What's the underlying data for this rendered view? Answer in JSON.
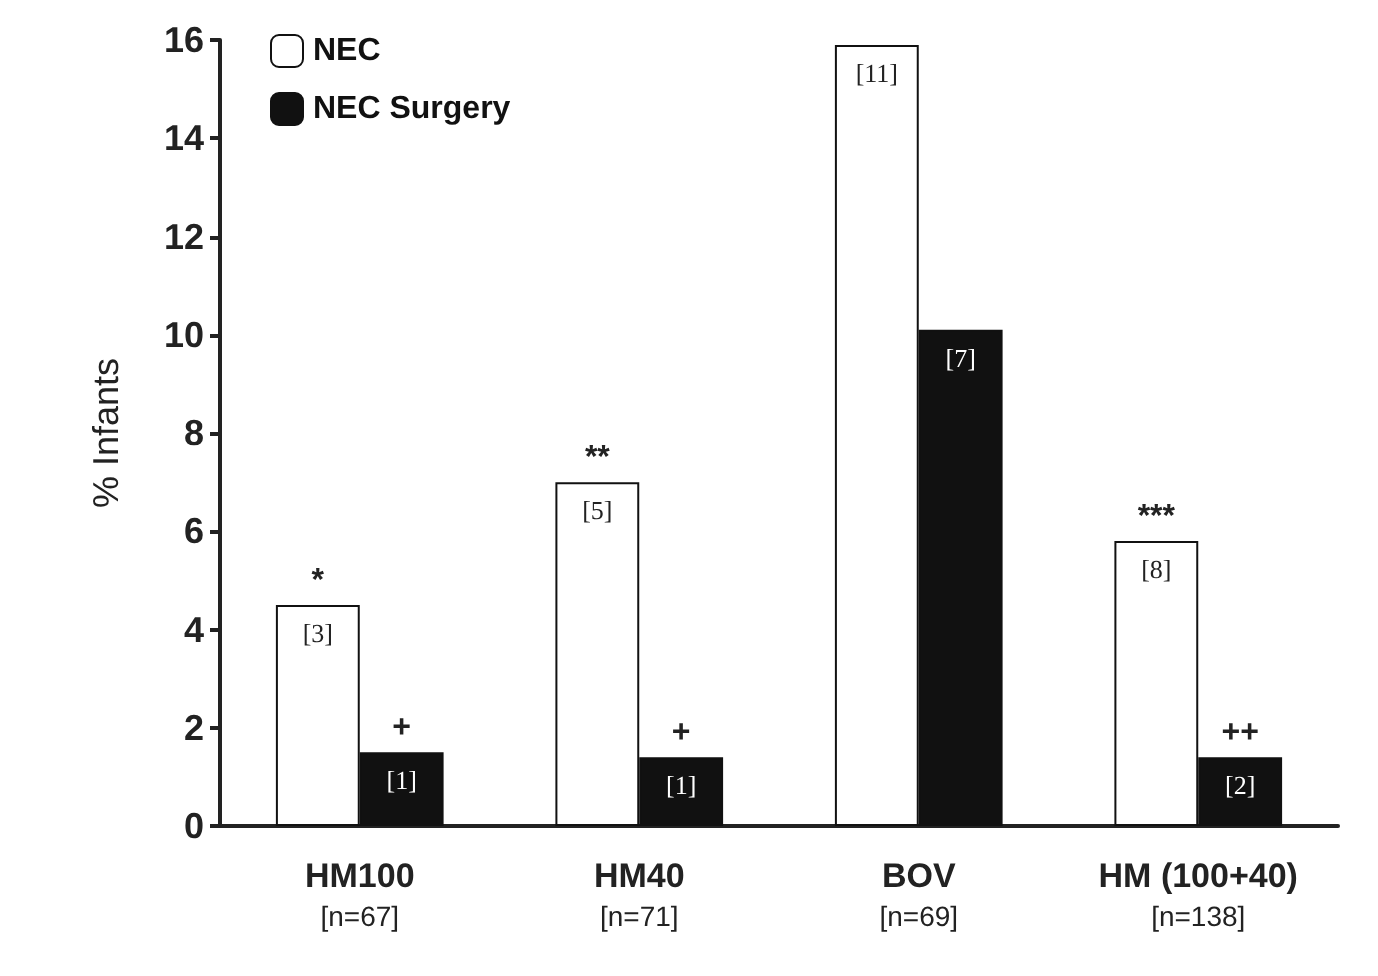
{
  "chart_data": {
    "type": "bar",
    "ylabel": "% Infants",
    "categories": [
      "HM100\n[n=67]",
      "HM40\n[n=71]",
      "BOV\n[n=69]",
      "HM (100+40)\n[n=138]"
    ],
    "series": [
      {
        "name": "NEC",
        "color": "#ffffff",
        "values": [
          4.5,
          7.0,
          15.9,
          5.8
        ]
      },
      {
        "name": "NEC Surgery",
        "color": "#111111",
        "values": [
          1.5,
          1.4,
          10.1,
          1.4
        ]
      }
    ],
    "ylim": [
      0,
      16
    ],
    "yticks": [
      0,
      2,
      4,
      6,
      8,
      10,
      12,
      14,
      16
    ],
    "grid": false,
    "legend": "top left",
    "annotations": [
      {
        "text": "[3]",
        "x": "HM100\n[n=67]",
        "y": 4.5
      },
      {
        "text": "[1]",
        "x": "HM100\n[n=67]",
        "y": 1.5
      },
      {
        "text": "[5]",
        "x": "HM40\n[n=71]",
        "y": 7.0
      },
      {
        "text": "[1]",
        "x": "HM40\n[n=71]",
        "y": 1.4
      },
      {
        "text": "[11]",
        "x": "BOV\n[n=69]",
        "y": 15.9
      },
      {
        "text": "[7]",
        "x": "BOV\n[n=69]",
        "y": 10.1
      },
      {
        "text": "[8]",
        "x": "HM (100+40)\n[n=138]",
        "y": 5.8
      },
      {
        "text": "[2]",
        "x": "HM (100+40)\n[n=138]",
        "y": 1.4
      },
      {
        "text": "*",
        "x": "HM100\n[n=67]",
        "y": 4.5
      },
      {
        "text": "+",
        "x": "HM100\n[n=67]",
        "y": 1.5
      },
      {
        "text": "**",
        "x": "HM40\n[n=71]",
        "y": 7.0
      },
      {
        "text": "+",
        "x": "HM40\n[n=71]",
        "y": 1.4
      },
      {
        "text": "***",
        "x": "HM (100+40)\n[n=138]",
        "y": 5.8
      },
      {
        "text": "++",
        "x": "HM (100+40)\n[n=138]",
        "y": 1.4
      }
    ]
  }
}
